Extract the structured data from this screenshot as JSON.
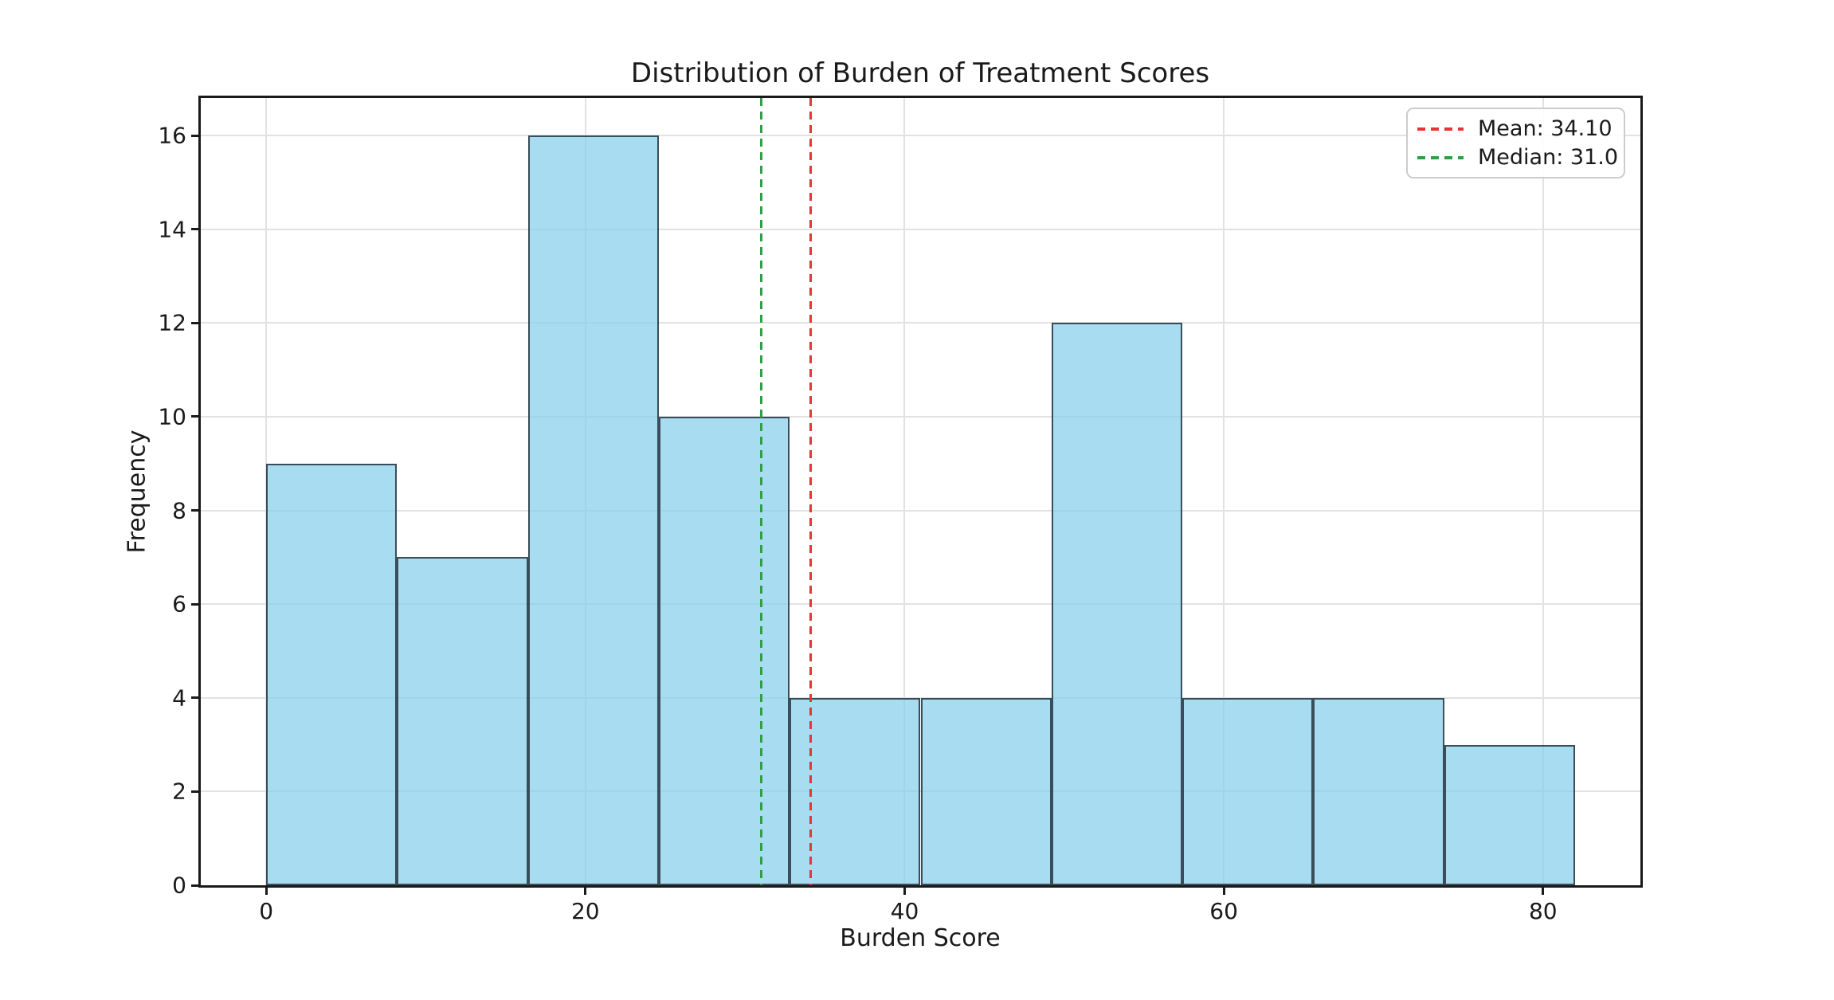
{
  "chart_data": {
    "type": "bar",
    "subtype": "histogram",
    "title": "Distribution of Burden of Treatment Scores",
    "xlabel": "Burden Score",
    "ylabel": "Frequency",
    "bin_edges": [
      0,
      8.2,
      16.4,
      24.6,
      32.8,
      41.0,
      49.2,
      57.4,
      65.6,
      73.8,
      82.0
    ],
    "values": [
      9,
      7,
      16,
      10,
      4,
      4,
      12,
      4,
      4,
      3
    ],
    "x_ticks": [
      0,
      20,
      40,
      60,
      80
    ],
    "y_ticks": [
      0,
      2,
      4,
      6,
      8,
      10,
      12,
      14,
      16
    ],
    "xlim": [
      -4.1,
      86.1
    ],
    "ylim": [
      0,
      16.8
    ],
    "grid": true,
    "legend_position": "upper right",
    "bar_fill": "#87CEEB",
    "bar_fill_alpha": 0.72,
    "bar_edge": "#192530",
    "reference_lines": [
      {
        "name": "mean",
        "x": 34.1,
        "label": "Mean: 34.10",
        "color": "#e53535",
        "style": "dashed"
      },
      {
        "name": "median",
        "x": 31.0,
        "label": "Median: 31.0",
        "color": "#2f9e44",
        "style": "dashed"
      }
    ]
  },
  "legend": {
    "items": [
      {
        "label": "Mean: 34.10",
        "color": "#e53535"
      },
      {
        "label": "Median: 31.0",
        "color": "#2f9e44"
      }
    ]
  },
  "colors": {
    "background": "#ffffff",
    "text": "#1a1a1a",
    "grid": "#e2e2e2",
    "spine": "#1a1a1a"
  }
}
